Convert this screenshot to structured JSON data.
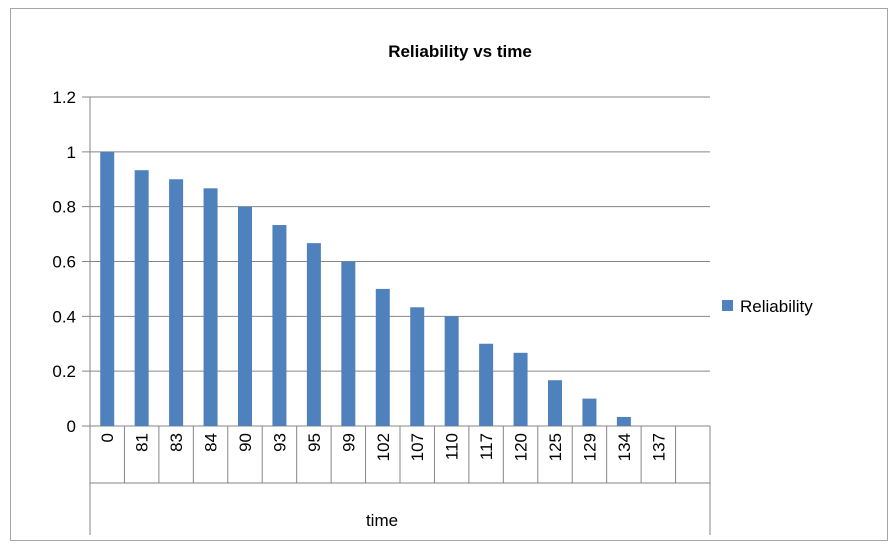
{
  "chart_data": {
    "type": "bar",
    "title": "Reliability vs time",
    "xlabel": "time",
    "ylabel": "",
    "ylim": [
      0,
      1.2
    ],
    "yticks": [
      "0",
      "0.2",
      "0.4",
      "0.6",
      "0.8",
      "1",
      "1.2"
    ],
    "ytick_values": [
      0,
      0.2,
      0.4,
      0.6,
      0.8,
      1,
      1.2
    ],
    "categories": [
      "0",
      "81",
      "83",
      "84",
      "90",
      "93",
      "95",
      "99",
      "102",
      "107",
      "110",
      "117",
      "120",
      "125",
      "129",
      "134",
      "137",
      ""
    ],
    "series": [
      {
        "name": "Reliability",
        "color": "#4f81bd",
        "values": [
          1.0,
          0.933,
          0.9,
          0.867,
          0.8,
          0.733,
          0.667,
          0.6,
          0.5,
          0.433,
          0.4,
          0.3,
          0.267,
          0.167,
          0.1,
          0.033,
          0,
          0
        ]
      }
    ],
    "grid": true,
    "legend": "right"
  }
}
